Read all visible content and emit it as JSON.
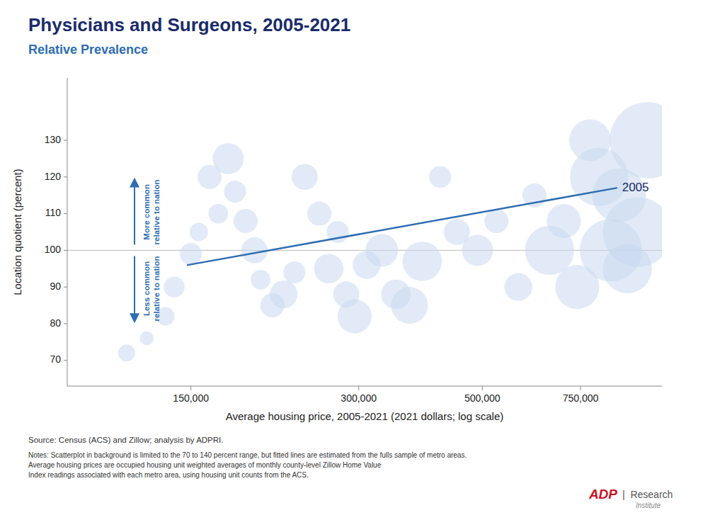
{
  "chart_data": {
    "type": "scatter",
    "title": "Physicians and Surgeons, 2005-2021",
    "subtitle": "Relative Prevalence",
    "xlabel": "Average housing price, 2005-2021 (2021 dollars; log scale)",
    "ylabel": "Location quotient (percent)",
    "log": "x",
    "grid": false,
    "xlim": [
      90000,
      1050000
    ],
    "xticks": [
      {
        "value": 150000,
        "label": "150,000"
      },
      {
        "value": 300000,
        "label": "300,000"
      },
      {
        "value": 500000,
        "label": "500,000"
      },
      {
        "value": 750000,
        "label": "750,000"
      }
    ],
    "ylim": [
      63,
      147
    ],
    "yticks": [
      70,
      80,
      90,
      100,
      110,
      120,
      130
    ],
    "reference_line": 100,
    "series": [
      {
        "type": "scatter",
        "color": "#c8d9ee",
        "x": [
          115000,
          125000,
          135000,
          140000,
          150000,
          155000,
          162000,
          168000,
          175000,
          180000,
          188000,
          195000,
          200000,
          210000,
          220000,
          230000,
          240000,
          255000,
          265000,
          275000,
          285000,
          295000,
          310000,
          330000,
          350000,
          370000,
          390000,
          420000,
          450000,
          490000,
          530000,
          580000,
          620000,
          660000,
          700000,
          740000,
          780000,
          810000,
          850000,
          880000,
          910000,
          950000,
          990000
        ],
        "values": [
          72,
          76,
          82,
          90,
          99,
          105,
          120,
          110,
          125,
          116,
          108,
          100,
          92,
          85,
          88,
          94,
          120,
          110,
          95,
          105,
          88,
          82,
          96,
          100,
          88,
          85,
          97,
          120,
          105,
          100,
          108,
          90,
          115,
          100,
          108,
          90,
          130,
          120,
          100,
          115,
          95,
          105,
          130
        ],
        "sizes": [
          300,
          200,
          350,
          450,
          500,
          350,
          600,
          400,
          1000,
          500,
          600,
          700,
          400,
          600,
          800,
          500,
          700,
          600,
          900,
          500,
          700,
          1200,
          800,
          1100,
          900,
          1400,
          1600,
          500,
          700,
          1000,
          600,
          800,
          600,
          2500,
          1200,
          2000,
          1800,
          3500,
          4000,
          3000,
          2500,
          5000,
          6000
        ]
      },
      {
        "type": "line",
        "name": "2005",
        "color": "#2e6db4",
        "x": [
          148000,
          870000
        ],
        "values": [
          96,
          117
        ]
      }
    ],
    "annotations": [
      {
        "text": "More common\nrelative to nation"
      },
      {
        "text": "Less common\nrelative to nation"
      }
    ],
    "source": "Source: Census (ACS) and Zillow; analysis by ADPRI.",
    "notes": "Notes: Scatterplot in background is limited to the 70 to 140 percent range, but fitted lines are estimated from the fulls sample of metro areas.\nAverage housing prices are occupied housing unit weighted averages of monthly county-level Zillow Home Value\nIndex readings associated with each metro area, using housing unit counts from the ACS.",
    "logo": [
      "ADP",
      "|  Research",
      "Institute"
    ]
  }
}
